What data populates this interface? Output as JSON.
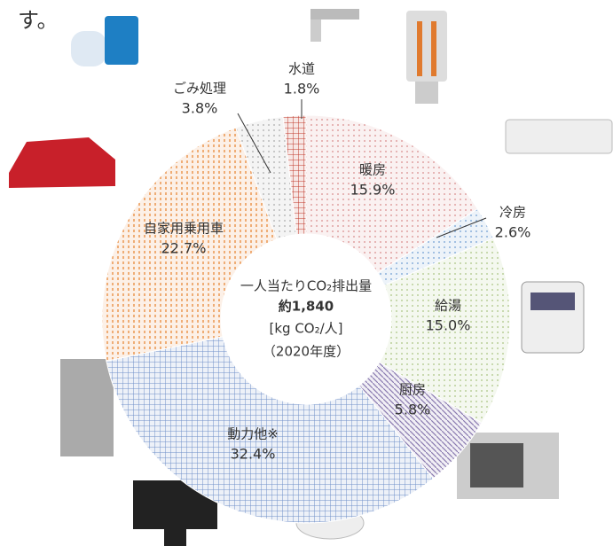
{
  "chart_data": {
    "type": "donut",
    "intro_text": "す。",
    "center_lines": [
      "一人当たりCO₂排出量",
      "約1,840",
      "[kg CO₂/人]",
      "（2020年度）"
    ],
    "categories": [
      "暖房",
      "冷房",
      "給湯",
      "厨房",
      "動力他※",
      "自家用乗用車",
      "ごみ処理",
      "水道"
    ],
    "values": [
      15.9,
      2.6,
      15.0,
      5.8,
      32.4,
      22.7,
      3.8,
      1.8
    ],
    "value_labels": [
      "15.9%",
      "2.6%",
      "15.0%",
      "5.8%",
      "32.4%",
      "22.7%",
      "3.8%",
      "1.8%"
    ],
    "colors": [
      "#d98a8a",
      "#6d9bd1",
      "#a9c47f",
      "#8a7bb0",
      "#6f8fc9",
      "#e8893a",
      "#a8a8a8",
      "#c0392b"
    ],
    "patterns": [
      "dots",
      "dots",
      "dots",
      "stripes",
      "grid",
      "dashes",
      "dots",
      "grid"
    ]
  }
}
